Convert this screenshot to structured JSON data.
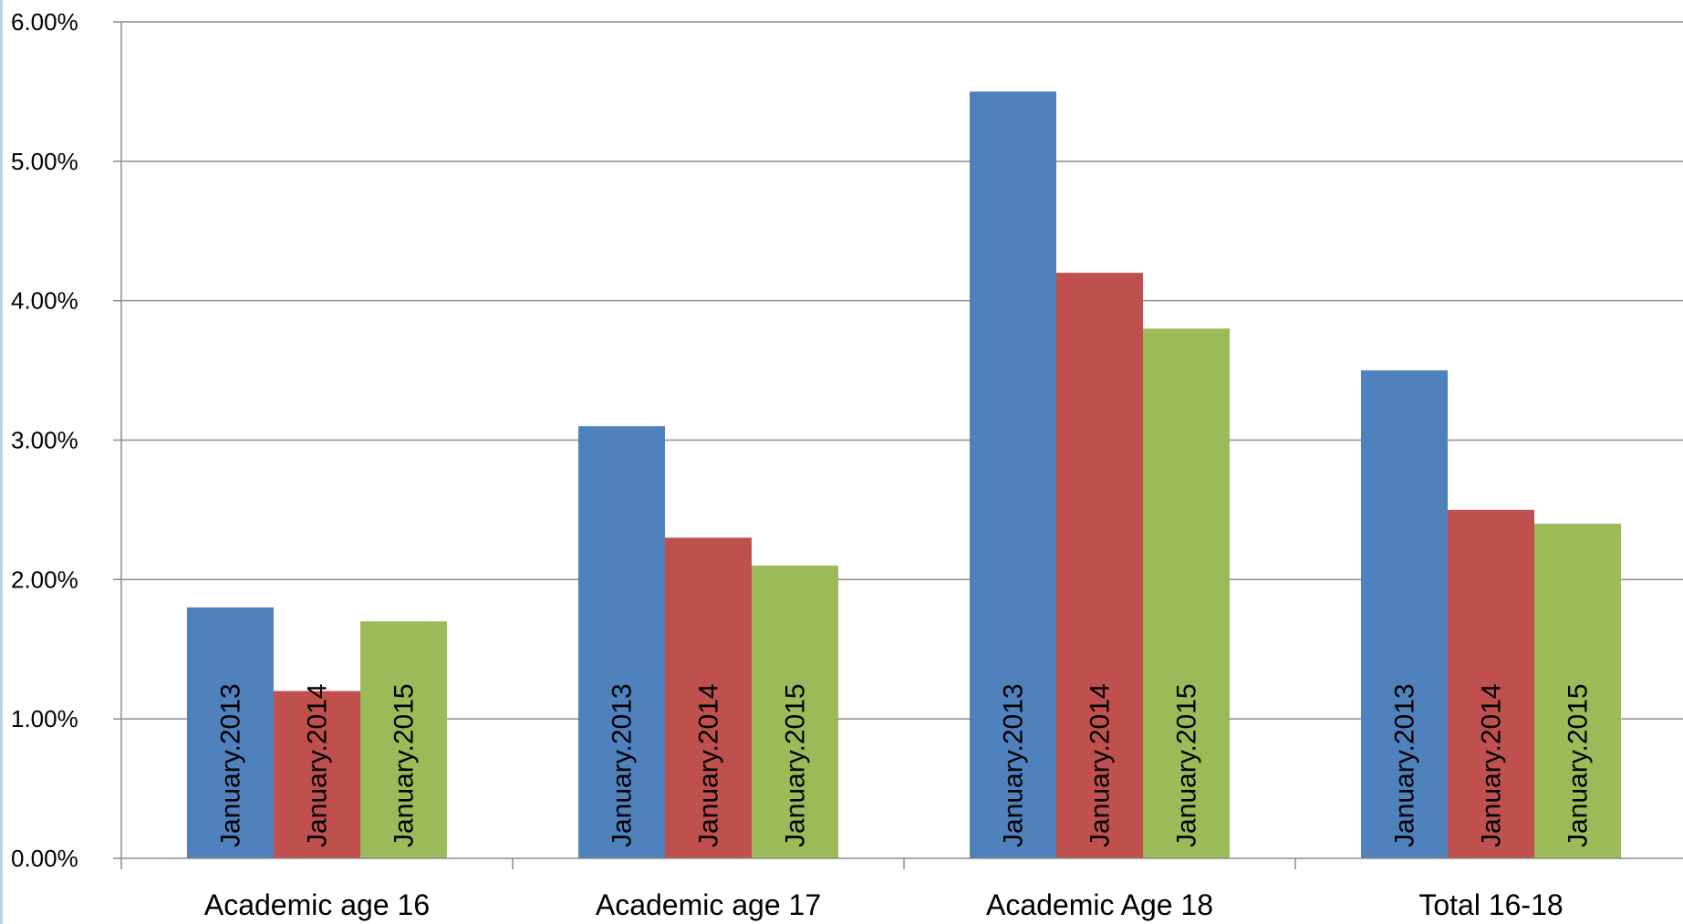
{
  "chart_data": {
    "type": "bar",
    "categories": [
      "Academic age 16",
      "Academic age 17",
      "Academic Age 18",
      "Total 16-18"
    ],
    "series": [
      {
        "name": "January.2013",
        "color": "#4F81BD",
        "values": [
          1.8,
          3.1,
          5.5,
          3.5
        ]
      },
      {
        "name": "January.2014",
        "color": "#C0504D",
        "values": [
          1.2,
          2.3,
          4.2,
          2.5
        ]
      },
      {
        "name": "January.2015",
        "color": "#9BBB59",
        "values": [
          1.7,
          2.1,
          3.8,
          2.4
        ]
      }
    ],
    "title": "",
    "xlabel": "",
    "ylabel": "",
    "ylim": [
      0,
      6
    ],
    "yticks": [
      "0.00%",
      "1.00%",
      "2.00%",
      "3.00%",
      "4.00%",
      "5.00%",
      "6.00%"
    ],
    "grid": true,
    "legend": "none",
    "data_labels": "series name inside bars, rotated vertically"
  }
}
